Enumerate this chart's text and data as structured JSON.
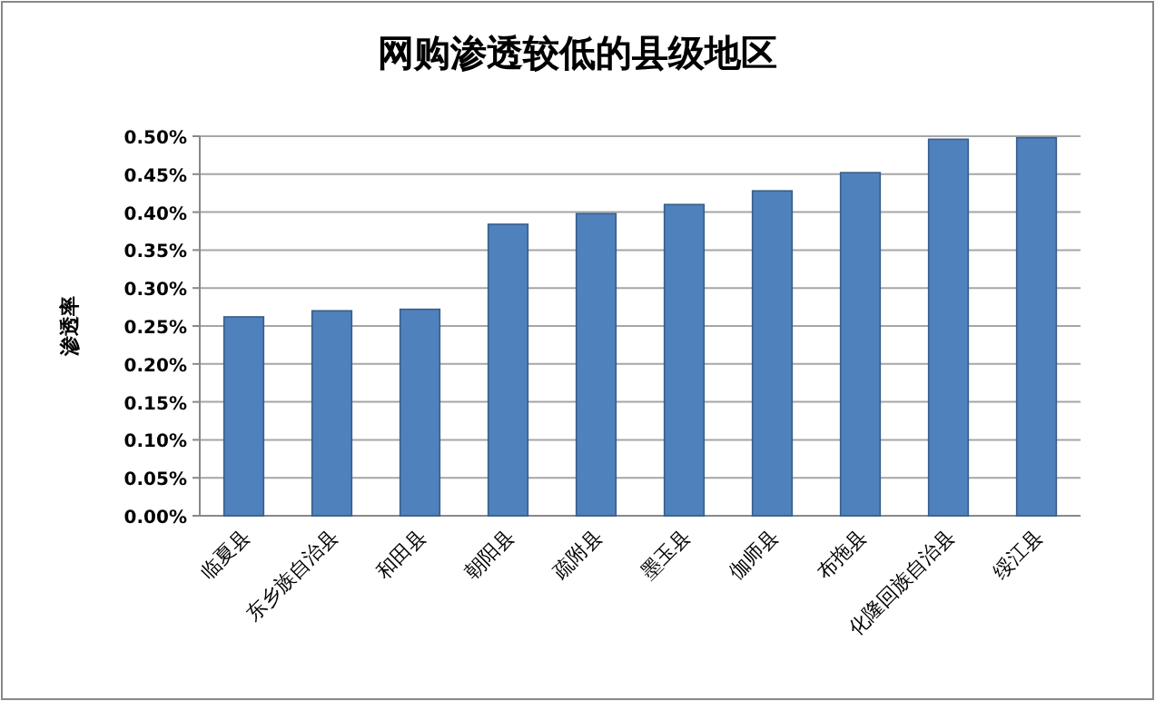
{
  "chart_data": {
    "type": "bar",
    "title": "网购渗透较低的县级地区",
    "ylabel": "渗透率",
    "categories": [
      "临夏县",
      "东乡族自治县",
      "和田县",
      "朝阳县",
      "疏附县",
      "墨玉县",
      "伽师县",
      "布拖县",
      "化隆回族自治县",
      "绥江县"
    ],
    "values": [
      0.262,
      0.27,
      0.272,
      0.384,
      0.398,
      0.41,
      0.428,
      0.452,
      0.496,
      0.498
    ],
    "color": "#4f81bd",
    "ylim": [
      0,
      0.5
    ],
    "yticks": [
      {
        "value": 0,
        "label": "0.00%"
      },
      {
        "value": 0.05,
        "label": "0.05%"
      },
      {
        "value": 0.1,
        "label": "0.10%"
      },
      {
        "value": 0.15,
        "label": "0.15%"
      },
      {
        "value": 0.2,
        "label": "0.20%"
      },
      {
        "value": 0.25,
        "label": "0.25%"
      },
      {
        "value": 0.3,
        "label": "0.30%"
      },
      {
        "value": 0.35,
        "label": "0.35%"
      },
      {
        "value": 0.4,
        "label": "0.40%"
      },
      {
        "value": 0.45,
        "label": "0.45%"
      },
      {
        "value": 0.5,
        "label": "0.50%"
      }
    ],
    "grid": "y"
  }
}
